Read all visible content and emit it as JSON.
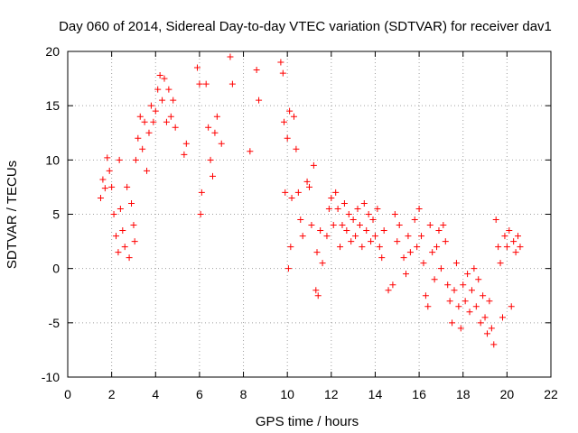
{
  "chart_data": {
    "type": "scatter",
    "title": "Day 060 of 2014, Sidereal Day-to-day VTEC variation (SDTVAR) for receiver dav1",
    "xlabel": "GPS time / hours",
    "ylabel": "SDTVAR / TECUs",
    "xlim": [
      0,
      22
    ],
    "ylim": [
      -10,
      20
    ],
    "xticks": [
      0,
      2,
      4,
      6,
      8,
      10,
      12,
      14,
      16,
      18,
      20,
      22
    ],
    "yticks": [
      -10,
      -5,
      0,
      5,
      10,
      15,
      20
    ],
    "grid": true,
    "marker": "+",
    "series": [
      {
        "name": "SDTVAR",
        "color": "#ff0000",
        "points": [
          [
            1.5,
            6.5
          ],
          [
            1.6,
            8.2
          ],
          [
            1.7,
            7.4
          ],
          [
            1.8,
            10.2
          ],
          [
            1.9,
            9.0
          ],
          [
            2.0,
            7.5
          ],
          [
            2.1,
            5.0
          ],
          [
            2.2,
            3.0
          ],
          [
            2.3,
            1.5
          ],
          [
            2.35,
            10.0
          ],
          [
            2.4,
            5.5
          ],
          [
            2.5,
            3.5
          ],
          [
            2.6,
            2.0
          ],
          [
            2.7,
            7.5
          ],
          [
            2.8,
            1.0
          ],
          [
            2.9,
            6.0
          ],
          [
            3.0,
            4.0
          ],
          [
            3.05,
            2.5
          ],
          [
            3.1,
            10.0
          ],
          [
            3.2,
            12.0
          ],
          [
            3.3,
            14.0
          ],
          [
            3.4,
            11.0
          ],
          [
            3.5,
            13.5
          ],
          [
            3.6,
            9.0
          ],
          [
            3.7,
            12.5
          ],
          [
            3.8,
            15.0
          ],
          [
            3.9,
            13.5
          ],
          [
            4.0,
            14.5
          ],
          [
            4.1,
            16.5
          ],
          [
            4.2,
            17.8
          ],
          [
            4.3,
            15.5
          ],
          [
            4.4,
            17.5
          ],
          [
            4.5,
            13.5
          ],
          [
            4.6,
            16.5
          ],
          [
            4.7,
            14.0
          ],
          [
            4.8,
            15.5
          ],
          [
            4.9,
            13.0
          ],
          [
            5.3,
            10.5
          ],
          [
            5.4,
            11.5
          ],
          [
            5.9,
            18.5
          ],
          [
            6.0,
            17.0
          ],
          [
            6.05,
            5.0
          ],
          [
            6.1,
            7.0
          ],
          [
            6.3,
            17.0
          ],
          [
            6.4,
            13.0
          ],
          [
            6.5,
            10.0
          ],
          [
            6.6,
            8.5
          ],
          [
            6.7,
            12.5
          ],
          [
            6.8,
            14.0
          ],
          [
            7.0,
            11.5
          ],
          [
            7.4,
            19.5
          ],
          [
            7.5,
            17.0
          ],
          [
            8.3,
            10.8
          ],
          [
            8.6,
            18.3
          ],
          [
            8.7,
            15.5
          ],
          [
            9.7,
            19.0
          ],
          [
            9.8,
            18.0
          ],
          [
            9.85,
            13.5
          ],
          [
            9.9,
            7.0
          ],
          [
            10.0,
            12.0
          ],
          [
            10.05,
            0.0
          ],
          [
            10.1,
            14.5
          ],
          [
            10.15,
            2.0
          ],
          [
            10.2,
            6.5
          ],
          [
            10.3,
            14.0
          ],
          [
            10.4,
            11.0
          ],
          [
            10.5,
            7.0
          ],
          [
            10.6,
            4.5
          ],
          [
            10.7,
            3.0
          ],
          [
            10.9,
            8.0
          ],
          [
            11.0,
            7.5
          ],
          [
            11.1,
            4.0
          ],
          [
            11.2,
            9.5
          ],
          [
            11.3,
            -2.0
          ],
          [
            11.35,
            1.5
          ],
          [
            11.4,
            -2.5
          ],
          [
            11.5,
            3.5
          ],
          [
            11.6,
            0.5
          ],
          [
            11.8,
            3.0
          ],
          [
            11.9,
            5.5
          ],
          [
            12.0,
            6.5
          ],
          [
            12.1,
            4.0
          ],
          [
            12.2,
            7.0
          ],
          [
            12.3,
            5.5
          ],
          [
            12.4,
            2.0
          ],
          [
            12.5,
            4.0
          ],
          [
            12.6,
            6.0
          ],
          [
            12.7,
            3.5
          ],
          [
            12.8,
            5.0
          ],
          [
            12.9,
            2.5
          ],
          [
            13.0,
            4.5
          ],
          [
            13.1,
            3.0
          ],
          [
            13.2,
            5.5
          ],
          [
            13.3,
            4.0
          ],
          [
            13.4,
            2.0
          ],
          [
            13.5,
            6.0
          ],
          [
            13.6,
            3.5
          ],
          [
            13.7,
            5.0
          ],
          [
            13.8,
            2.5
          ],
          [
            13.9,
            4.5
          ],
          [
            14.0,
            3.0
          ],
          [
            14.1,
            5.5
          ],
          [
            14.2,
            2.0
          ],
          [
            14.3,
            1.0
          ],
          [
            14.4,
            3.5
          ],
          [
            14.6,
            -2.0
          ],
          [
            14.8,
            -1.5
          ],
          [
            14.9,
            5.0
          ],
          [
            15.0,
            2.5
          ],
          [
            15.1,
            4.0
          ],
          [
            15.3,
            1.0
          ],
          [
            15.4,
            -0.5
          ],
          [
            15.5,
            3.0
          ],
          [
            15.6,
            1.5
          ],
          [
            15.8,
            4.5
          ],
          [
            15.9,
            2.0
          ],
          [
            16.0,
            5.5
          ],
          [
            16.1,
            3.0
          ],
          [
            16.2,
            0.5
          ],
          [
            16.3,
            -2.5
          ],
          [
            16.4,
            -3.5
          ],
          [
            16.5,
            4.0
          ],
          [
            16.6,
            1.5
          ],
          [
            16.7,
            -1.0
          ],
          [
            16.8,
            2.0
          ],
          [
            16.9,
            3.5
          ],
          [
            17.0,
            0.0
          ],
          [
            17.1,
            4.0
          ],
          [
            17.2,
            2.5
          ],
          [
            17.3,
            -1.5
          ],
          [
            17.4,
            -3.0
          ],
          [
            17.5,
            -5.0
          ],
          [
            17.6,
            -2.0
          ],
          [
            17.7,
            0.5
          ],
          [
            17.8,
            -3.5
          ],
          [
            17.9,
            -5.5
          ],
          [
            18.0,
            -1.5
          ],
          [
            18.1,
            -3.0
          ],
          [
            18.2,
            -0.5
          ],
          [
            18.3,
            -4.0
          ],
          [
            18.4,
            -2.0
          ],
          [
            18.5,
            0.0
          ],
          [
            18.6,
            -3.5
          ],
          [
            18.7,
            -1.0
          ],
          [
            18.8,
            -5.0
          ],
          [
            18.9,
            -2.5
          ],
          [
            19.0,
            -4.5
          ],
          [
            19.1,
            -6.0
          ],
          [
            19.2,
            -3.0
          ],
          [
            19.3,
            -5.5
          ],
          [
            19.4,
            -7.0
          ],
          [
            19.5,
            4.5
          ],
          [
            19.6,
            2.0
          ],
          [
            19.7,
            0.5
          ],
          [
            19.8,
            -4.5
          ],
          [
            19.9,
            3.0
          ],
          [
            20.0,
            2.0
          ],
          [
            20.1,
            3.5
          ],
          [
            20.2,
            -3.5
          ],
          [
            20.3,
            2.5
          ],
          [
            20.4,
            1.5
          ],
          [
            20.5,
            3.0
          ],
          [
            20.6,
            2.0
          ]
        ]
      }
    ]
  }
}
